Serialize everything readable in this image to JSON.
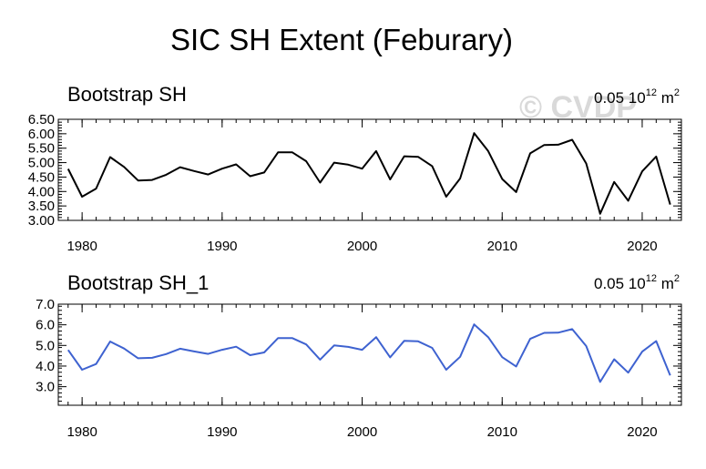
{
  "figure": {
    "title": "SIC SH Extent (Feburary)",
    "watermark": "© CVDP"
  },
  "chart_data": [
    {
      "type": "line",
      "title": "Bootstrap SH",
      "units_text": "0.05 10",
      "units_exp": "12",
      "units_tail": " m",
      "units_sq": "2",
      "line_color": "#000000",
      "xlim": [
        1978.3,
        2022.8
      ],
      "ylim": [
        3.0,
        6.5
      ],
      "x_ticks": [
        1980,
        1990,
        2000,
        2010,
        2020
      ],
      "y_ticks": [
        3.0,
        3.5,
        4.0,
        4.5,
        5.0,
        5.5,
        6.0,
        6.5
      ],
      "y_tick_labels": [
        "3.00",
        "3.50",
        "4.00",
        "4.50",
        "5.00",
        "5.50",
        "6.00",
        "6.50"
      ],
      "x": [
        1979,
        1980,
        1981,
        1982,
        1983,
        1984,
        1985,
        1986,
        1987,
        1988,
        1989,
        1990,
        1991,
        1992,
        1993,
        1994,
        1995,
        1996,
        1997,
        1998,
        1999,
        2000,
        2001,
        2002,
        2003,
        2004,
        2005,
        2006,
        2007,
        2008,
        2009,
        2010,
        2011,
        2012,
        2013,
        2014,
        2015,
        2016,
        2017,
        2018,
        2019,
        2020,
        2021,
        2022
      ],
      "values": [
        4.78,
        3.82,
        4.1,
        5.19,
        4.85,
        4.38,
        4.4,
        4.58,
        4.84,
        4.71,
        4.59,
        4.79,
        4.94,
        4.53,
        4.66,
        5.36,
        5.36,
        5.05,
        4.31,
        5.0,
        4.93,
        4.79,
        5.4,
        4.42,
        5.22,
        5.2,
        4.88,
        3.82,
        4.45,
        6.02,
        5.4,
        4.43,
        3.98,
        5.32,
        5.61,
        5.62,
        5.79,
        4.97,
        3.23,
        4.33,
        3.68,
        4.7,
        5.21,
        3.55
      ]
    },
    {
      "type": "line",
      "title": "Bootstrap SH_1",
      "units_text": "0.05 10",
      "units_exp": "12",
      "units_tail": " m",
      "units_sq": "2",
      "line_color": "#3e62d0",
      "xlim": [
        1978.3,
        2022.8
      ],
      "ylim": [
        2.1,
        7.0
      ],
      "x_ticks": [
        1980,
        1990,
        2000,
        2010,
        2020
      ],
      "y_ticks": [
        3.0,
        4.0,
        5.0,
        6.0,
        7.0
      ],
      "y_tick_labels": [
        "3.0",
        "4.0",
        "5.0",
        "6.0",
        "7.0"
      ],
      "x": [
        1979,
        1980,
        1981,
        1982,
        1983,
        1984,
        1985,
        1986,
        1987,
        1988,
        1989,
        1990,
        1991,
        1992,
        1993,
        1994,
        1995,
        1996,
        1997,
        1998,
        1999,
        2000,
        2001,
        2002,
        2003,
        2004,
        2005,
        2006,
        2007,
        2008,
        2009,
        2010,
        2011,
        2012,
        2013,
        2014,
        2015,
        2016,
        2017,
        2018,
        2019,
        2020,
        2021,
        2022
      ],
      "values": [
        4.78,
        3.82,
        4.1,
        5.19,
        4.85,
        4.38,
        4.4,
        4.58,
        4.84,
        4.71,
        4.59,
        4.79,
        4.94,
        4.53,
        4.66,
        5.36,
        5.36,
        5.05,
        4.31,
        5.0,
        4.93,
        4.79,
        5.4,
        4.42,
        5.22,
        5.2,
        4.88,
        3.82,
        4.45,
        6.02,
        5.4,
        4.43,
        3.98,
        5.32,
        5.61,
        5.62,
        5.79,
        4.97,
        3.23,
        4.33,
        3.68,
        4.7,
        5.21,
        3.55
      ]
    }
  ]
}
